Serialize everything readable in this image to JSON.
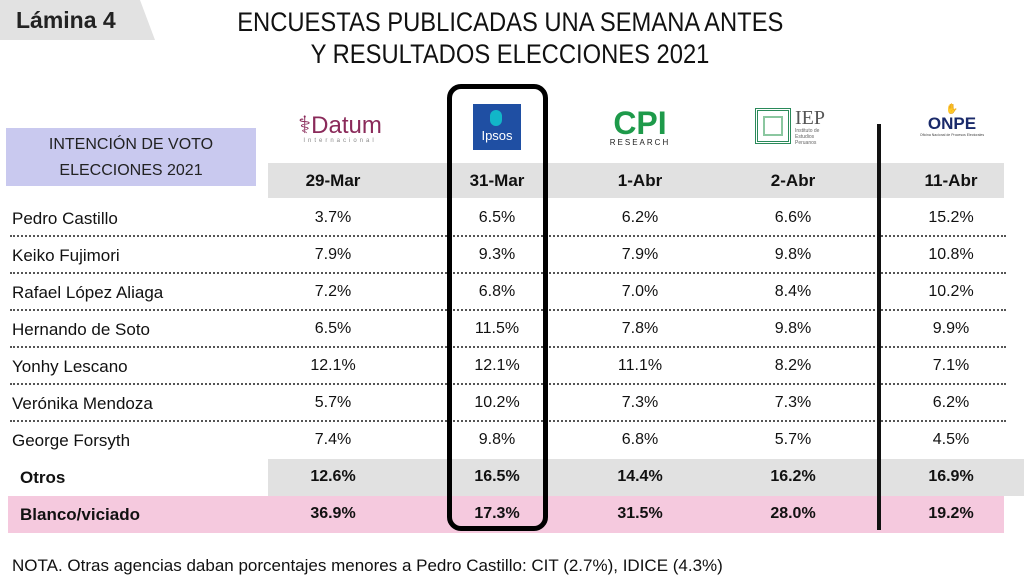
{
  "slide_label": "Lámina 4",
  "title_line1": "ENCUESTAS PUBLICADAS UNA SEMANA ANTES",
  "title_line2": "Y RESULTADOS ELECCIONES 2021",
  "row_header_line1": "INTENCIÓN DE VOTO",
  "row_header_line2": "ELECCIONES 2021",
  "logos": [
    {
      "name": "Datum",
      "sub": "Internacional"
    },
    {
      "name": "Ipsos"
    },
    {
      "name": "CPI",
      "sub": "RESEARCH"
    },
    {
      "name": "IEP",
      "sub": "Instituto de Estudios Peruanos"
    },
    {
      "name": "ONPE",
      "sub": "Oficina Nacional de Procesos Electorales"
    }
  ],
  "dates": [
    "29-Mar",
    "31-Mar",
    "1-Abr",
    "2-Abr",
    "11-Abr"
  ],
  "rows": [
    {
      "name": "Pedro Castillo",
      "values": [
        "3.7%",
        "6.5%",
        "6.2%",
        "6.6%",
        "15.2%"
      ]
    },
    {
      "name": "Keiko Fujimori",
      "values": [
        "7.9%",
        "9.3%",
        "7.9%",
        "9.8%",
        "10.8%"
      ]
    },
    {
      "name": "Rafael López Aliaga",
      "values": [
        "7.2%",
        "6.8%",
        "7.0%",
        "8.4%",
        "10.2%"
      ]
    },
    {
      "name": "Hernando de Soto",
      "values": [
        "6.5%",
        "11.5%",
        "7.8%",
        "9.8%",
        "9.9%"
      ]
    },
    {
      "name": "Yonhy  Lescano",
      "values": [
        "12.1%",
        "12.1%",
        "11.1%",
        "8.2%",
        "7.1%"
      ]
    },
    {
      "name": "Verónika Mendoza",
      "values": [
        "5.7%",
        "10.2%",
        "7.3%",
        "7.3%",
        "6.2%"
      ]
    },
    {
      "name": "George Forsyth",
      "values": [
        "7.4%",
        "9.8%",
        "6.8%",
        "5.7%",
        "4.5%"
      ]
    },
    {
      "name": "Otros",
      "values": [
        "12.6%",
        "16.5%",
        "14.4%",
        "16.2%",
        "16.9%"
      ]
    },
    {
      "name": "Blanco/viciado",
      "values": [
        "36.9%",
        "17.3%",
        "31.5%",
        "28.0%",
        "19.2%"
      ]
    }
  ],
  "colors": {
    "otros_bg": "#e1e1e1",
    "blanco_bg": "#f5c9de",
    "header_bg": "#c9c9ef",
    "ipsos": "#1f4fa3",
    "cpi": "#1e9a4a",
    "datum": "#8a2a5a",
    "onpe": "#1a2a6a"
  },
  "note": "NOTA. Otras agencias daban porcentajes menores a Pedro Castillo: CIT (2.7%), IDICE (4.3%)"
}
